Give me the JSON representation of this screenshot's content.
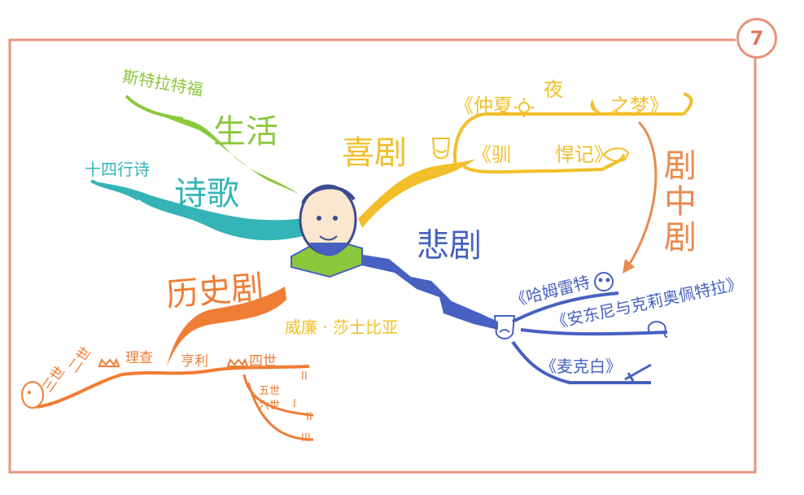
{
  "page_number": "7",
  "center": {
    "name": "威廉 · 莎士比亚"
  },
  "branches": {
    "comedy": {
      "label": "喜剧",
      "items": [
        "《仲夏",
        "夜",
        "之梦》",
        "《驯",
        "悍记》"
      ]
    },
    "tragedy": {
      "label": "悲剧",
      "items": [
        "《哈姆雷特",
        "《安东尼与克莉奥佩特拉》",
        "《麦克白》"
      ]
    },
    "history": {
      "label": "历史剧",
      "items": [
        "理查",
        "亨利",
        "四世",
        "五世",
        "六世",
        "二世",
        "三世",
        "II",
        "I",
        "II",
        "III"
      ]
    },
    "life": {
      "label": "生活",
      "items": [
        "斯特拉特福"
      ]
    },
    "poetry": {
      "label": "诗歌",
      "items": [
        "十四行诗"
      ]
    },
    "play_within_play": {
      "label": "剧中剧"
    }
  },
  "colors": {
    "frame": "#e8937b",
    "comedy": "#f2bf2a",
    "tragedy": "#4761c0",
    "history": "#f07d35",
    "life": "#8cc83c",
    "poetry": "#34b4b6",
    "play_within_play": "#e9894e"
  },
  "icons": [
    "shakespeare-portrait-icon",
    "open-book-icon",
    "comedy-mask-icon",
    "tragedy-mask-icon",
    "sun-icon",
    "moon-icon",
    "donkey-icon",
    "skull-icon",
    "snake-icon",
    "dagger-icon",
    "crown-icon",
    "face-icon"
  ]
}
